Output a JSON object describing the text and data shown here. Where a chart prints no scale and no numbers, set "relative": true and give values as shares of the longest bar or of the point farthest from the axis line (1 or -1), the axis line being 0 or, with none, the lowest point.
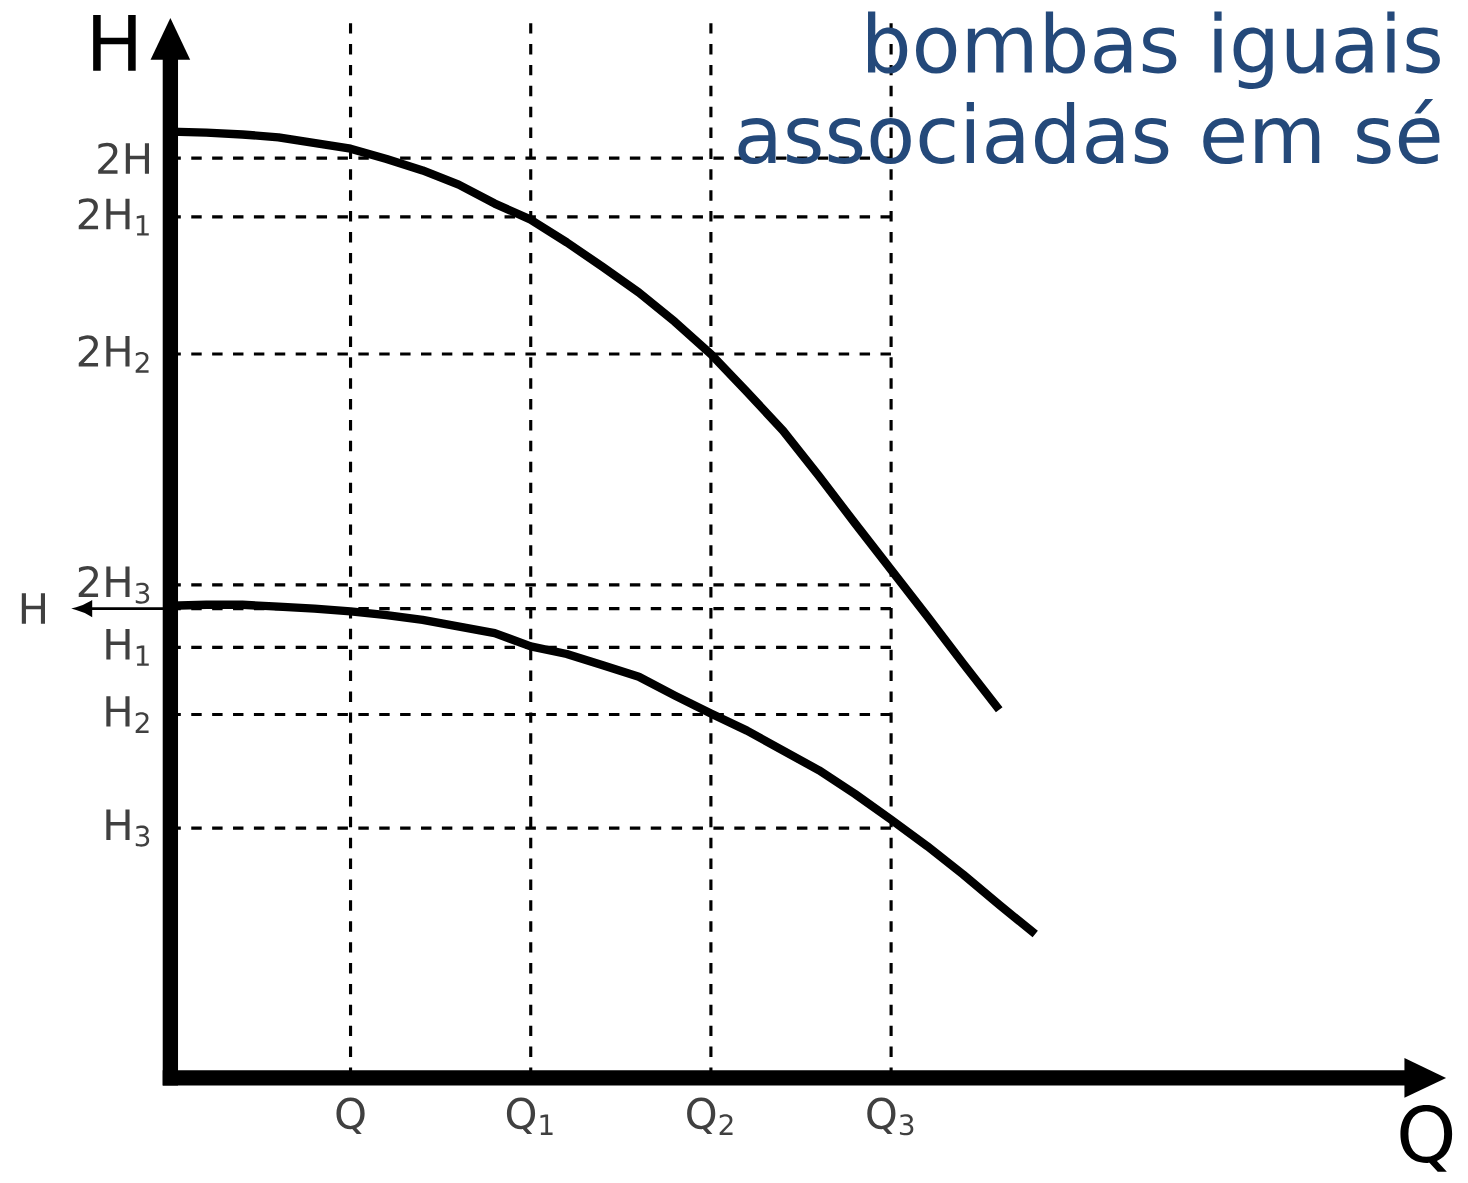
{
  "chart_data": {
    "type": "line",
    "title": "bombas iguais associadas em sé",
    "xlabel": "Q",
    "ylabel": "H",
    "relative": true,
    "marker": "none",
    "line_style": "solid",
    "grid": "x",
    "categories": [
      null,
      null,
      null,
      null,
      null,
      "Q",
      null,
      null,
      null,
      null,
      "Q$_{1}$",
      null,
      null,
      null,
      null,
      "Q$_{2}$",
      null,
      null,
      null,
      null,
      "Q$_{3}$",
      null,
      null,
      null,
      null,
      null,
      null,
      null,
      null,
      null,
      null,
      null,
      null,
      null,
      null,
      null
    ],
    "ref_lines": [
      {
        "axis": "y",
        "value": 0.972,
        "label": "2H",
        "line_style": "dashed",
        "color": "#000000"
      },
      {
        "axis": "y",
        "value": 0.91,
        "label": "2H$_{1}$",
        "line_style": "dashed",
        "color": "#000000"
      },
      {
        "axis": "y",
        "value": 0.765,
        "label": "2H$_{2}$",
        "line_style": "dashed",
        "color": "#000000"
      },
      {
        "axis": "y",
        "value": 0.521,
        "label": "2H$_{3}$",
        "line_style": "dashed",
        "color": "#000000"
      },
      {
        "axis": "y",
        "value": 0.496,
        "label": "H",
        "line_style": "dashed",
        "color": "#000000"
      },
      {
        "axis": "y",
        "value": 0.455,
        "label": "H$_{1}$",
        "line_style": "dashed",
        "color": "#000000"
      },
      {
        "axis": "y",
        "value": 0.384,
        "label": "H$_{2}$",
        "line_style": "dashed",
        "color": "#000000"
      },
      {
        "axis": "y",
        "value": 0.264,
        "label": "H$_{3}$",
        "line_style": "dashed",
        "color": "#000000"
      }
    ],
    "series": [
      {
        "color": "#000000",
        "values": [
          1,
          0.999,
          0.997,
          0.994,
          0.988,
          0.982,
          0.971,
          0.959,
          0.944,
          0.924,
          0.907,
          0.883,
          0.857,
          0.83,
          0.799,
          0.765,
          0.725,
          0.684,
          0.636,
          0.586,
          0.537,
          0.488,
          0.438,
          0.389,
          null,
          null,
          null,
          null,
          null,
          null,
          null,
          null,
          null,
          null,
          null,
          null
        ]
      },
      {
        "color": "#000000",
        "values": [
          0.499,
          0.5,
          0.5,
          0.498,
          0.496,
          0.493,
          0.489,
          0.484,
          0.477,
          0.47,
          0.456,
          0.448,
          0.436,
          0.424,
          0.404,
          0.385,
          0.367,
          0.346,
          0.325,
          0.3,
          0.273,
          0.245,
          0.215,
          0.183,
          0.152,
          null,
          null,
          null,
          null,
          null,
          null,
          null,
          null,
          null,
          null,
          null
        ]
      }
    ]
  }
}
